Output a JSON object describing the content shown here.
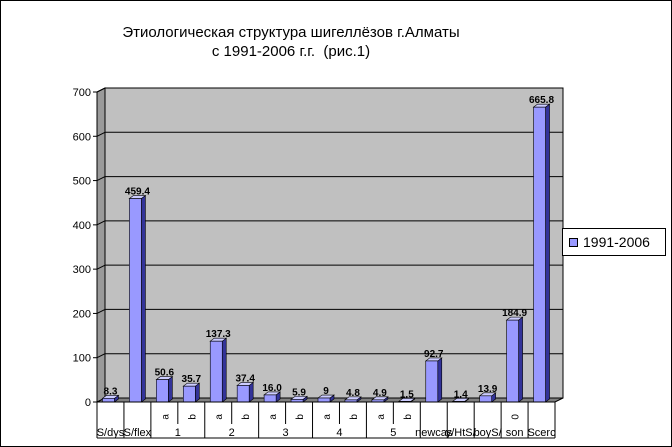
{
  "title": {
    "line1": "Этиологическая структура шигеллёзов г.Алматы",
    "line2": "с 1991-2006 г.г.  (рис.1)"
  },
  "legend": {
    "label": "1991-2006"
  },
  "colors": {
    "bar_face": "#9999ff",
    "bar_side": "#333399",
    "plot_bg": "#c0c0c0",
    "grid": "#000000"
  },
  "chart_data": {
    "type": "bar",
    "title": "Этиологическая структура шигеллёзов г.Алматы с 1991-2006 г.г.  (рис.1)",
    "ylim": [
      0,
      700
    ],
    "yticks": [
      0,
      100,
      200,
      300,
      400,
      500,
      600,
      700
    ],
    "grid": true,
    "legend_position": "right",
    "categories": [
      "S/dys",
      "S/flex",
      "1 a",
      "1 b",
      "2 a",
      "2 b",
      "3 a",
      "3 b",
      "4 a",
      "4 b",
      "5 a",
      "5 b",
      "newcas",
      "y/HtS/",
      "boyS/",
      "son0",
      "Scerc"
    ],
    "sub_labels": [
      "",
      "",
      "a",
      "b",
      "a",
      "b",
      "a",
      "b",
      "a",
      "b",
      "a",
      "b",
      "",
      "",
      "",
      "0",
      ""
    ],
    "group_labels": [
      "S/dys",
      "S/flex",
      "1",
      "2",
      "3",
      "4",
      "5",
      "newcas",
      "y/HtS/",
      "boyS/",
      "son",
      "Scerc"
    ],
    "series": [
      {
        "name": "1991-2006",
        "values": [
          8.3,
          459.4,
          50.6,
          35.7,
          137.3,
          37.4,
          16.0,
          5.9,
          9.0,
          4.8,
          4.9,
          1.5,
          92.7,
          1.4,
          13.9,
          184.9,
          665.8
        ],
        "data_labels": [
          "8.3",
          "459.4",
          "50.6",
          "35.7",
          "137.3",
          "37.4",
          "16.0",
          "5.9",
          "9",
          "4.8",
          "4.9",
          "1.5",
          "92.7",
          "1.4",
          "13.9",
          "184.9",
          "665.8"
        ]
      }
    ]
  }
}
